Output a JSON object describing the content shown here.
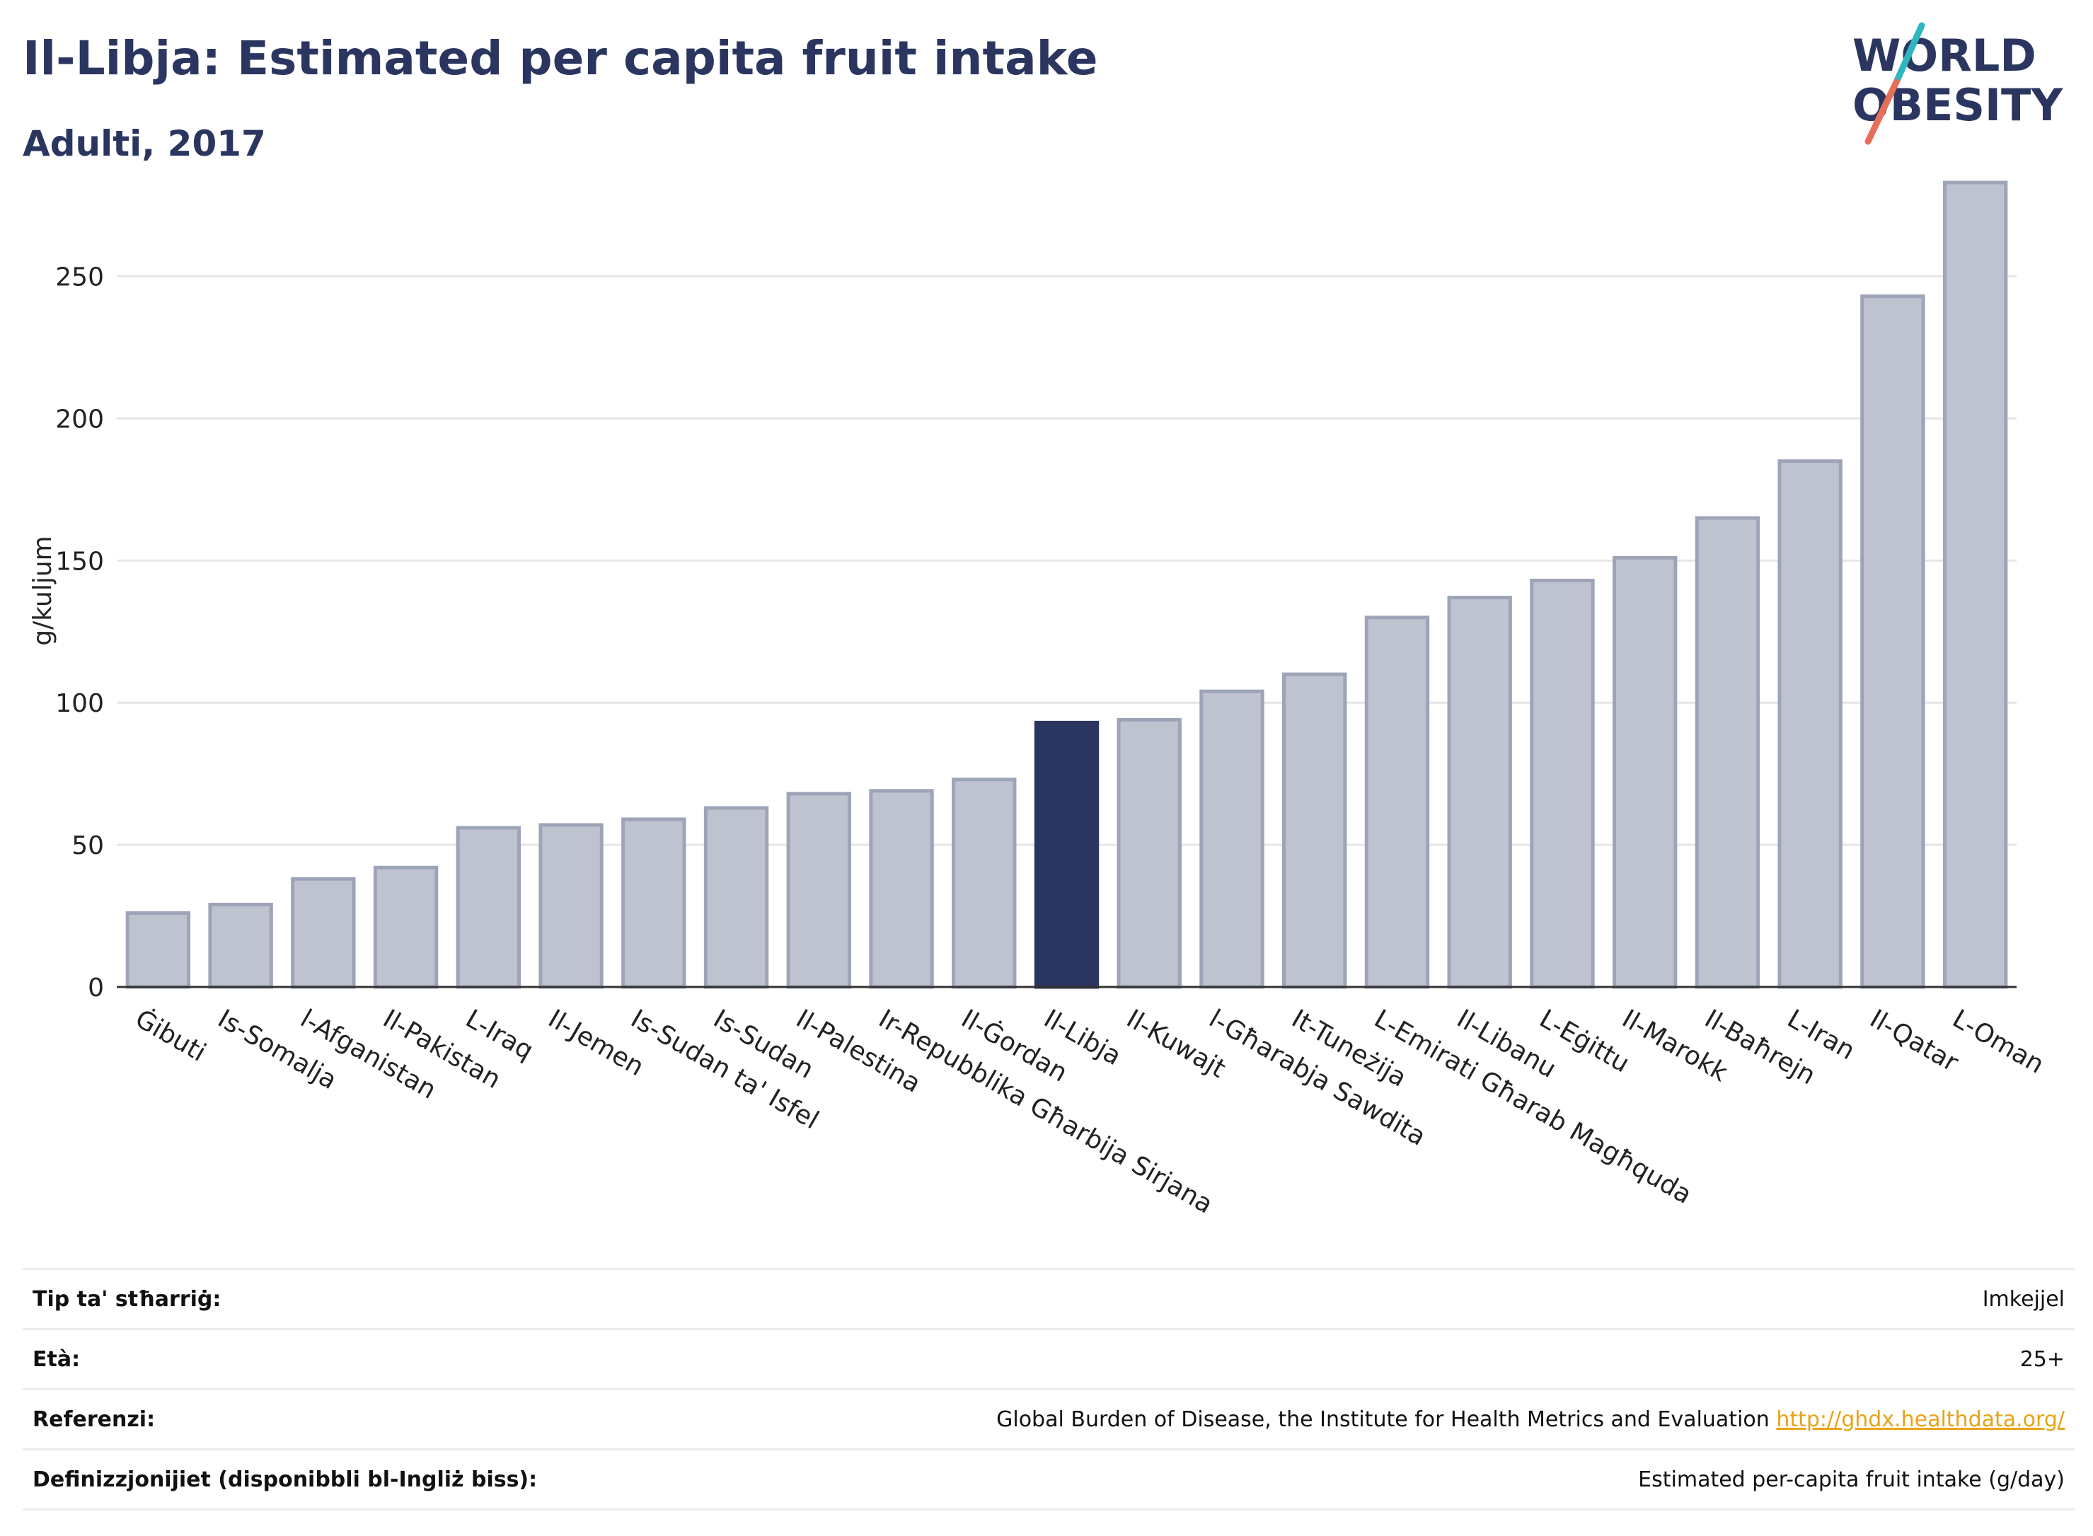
{
  "header": {
    "title": "Il-Libja: Estimated per capita fruit intake",
    "subtitle": "Adulti, 2017"
  },
  "logo": {
    "line1": "WORLD",
    "line2": "OBESITY",
    "accent_colors": [
      "#2fb7c0",
      "#e76f5a"
    ]
  },
  "colors": {
    "highlight": "#2b3660",
    "bar_fill": "#bfc3d0",
    "bar_stroke": "#9ea4b8",
    "grid": "#e6e6e6",
    "link": "#e8a317"
  },
  "chart_data": {
    "type": "bar",
    "title": "Il-Libja: Estimated per capita fruit intake",
    "subtitle": "Adulti, 2017",
    "ylabel": "g/kuljum",
    "xlabel": "",
    "ylim": [
      0,
      285
    ],
    "yticks": [
      0,
      50,
      100,
      150,
      200,
      250
    ],
    "grid": true,
    "highlight": "Il-Libja",
    "categories": [
      "Ġibuti",
      "Is-Somalja",
      "l-Afganistan",
      "Il-Pakistan",
      "L-Iraq",
      "Il-Jemen",
      "Is-Sudan ta' Isfel",
      "Is-Sudan",
      "Il-Palestina",
      "Ir-Repubblika Għarbija Sirjana",
      "Il-Ġordan",
      "Il-Libja",
      "Il-Kuwajt",
      "l-Għarabja Sawdita",
      "It-Tuneżija",
      "L-Emirati Għarab Magħquda",
      "Il-Libanu",
      "L-Eġittu",
      "Il-Marokk",
      "Il-Baħrejn",
      "L-Iran",
      "Il-Qatar",
      "L-Oman"
    ],
    "values": [
      26,
      29,
      38,
      42,
      56,
      57,
      59,
      63,
      68,
      69,
      73,
      93,
      94,
      104,
      110,
      130,
      137,
      143,
      151,
      165,
      185,
      243,
      283
    ]
  },
  "info": {
    "rows": [
      {
        "label": "Tip ta' stħarriġ:",
        "value": "Imkejjel",
        "link": ""
      },
      {
        "label": "Età:",
        "value": "25+",
        "link": ""
      },
      {
        "label": "Referenzi:",
        "value": "Global Burden of Disease, the Institute for Health Metrics and Evaluation",
        "link": "http://ghdx.healthdata.org/"
      },
      {
        "label": "Definizzjonijiet (disponibbli bl-Ingliż biss):",
        "value": "Estimated per-capita fruit intake (g/day)",
        "link": ""
      }
    ]
  }
}
